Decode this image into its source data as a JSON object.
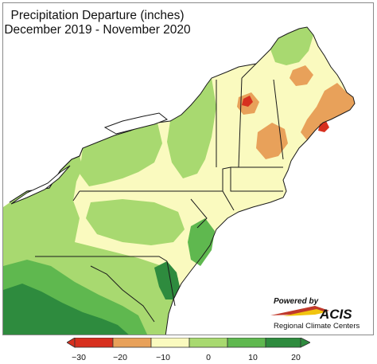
{
  "title": {
    "line1": "Precipitation Departure (inches)",
    "line2": "December 2019 - November 2020"
  },
  "logo": {
    "powered_by": "Powered by",
    "acis": "ACIS",
    "subtitle": "Regional Climate Centers"
  },
  "legend": {
    "colors": [
      "#d7301f",
      "#e8a15a",
      "#fafabf",
      "#a8d970",
      "#5fb84f",
      "#2e8b3e"
    ],
    "bins": [
      -30,
      -20,
      -10,
      0,
      10,
      20
    ],
    "tick_labels": [
      "−30",
      "−20",
      "−10",
      "0",
      "10",
      "20"
    ]
  },
  "palette": {
    "ocean": "#ffffff",
    "canada": "#ffffff",
    "state_border": "#1a1a1a",
    "county_border": "#8a8a8a"
  }
}
